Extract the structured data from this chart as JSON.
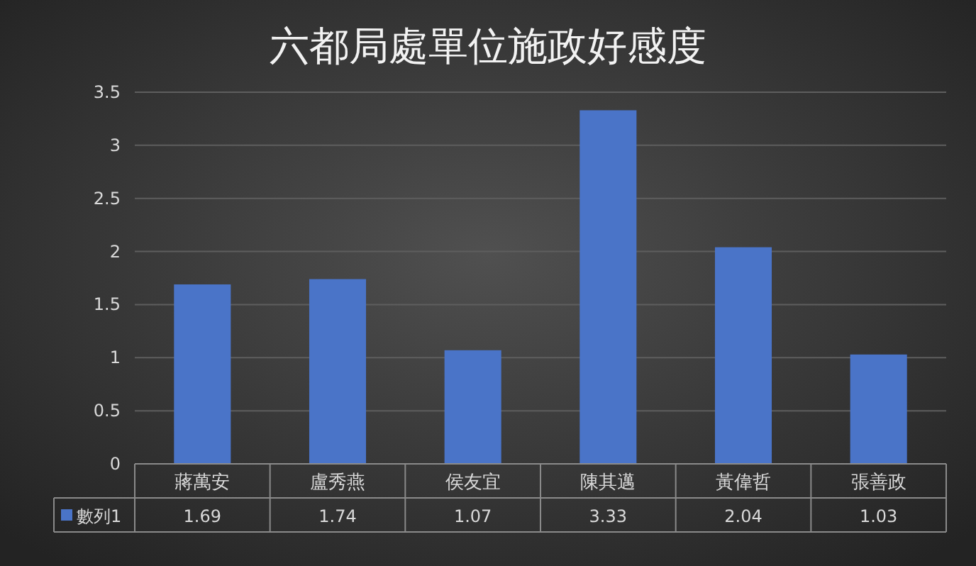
{
  "chart_data": {
    "type": "bar",
    "title": "六都局處單位施政好感度",
    "categories": [
      "蔣萬安",
      "盧秀燕",
      "侯友宜",
      "陳其邁",
      "黃偉哲",
      "張善政"
    ],
    "series": [
      {
        "name": "數列1",
        "color": "#4a74c8",
        "values": [
          1.69,
          1.74,
          1.07,
          3.33,
          2.04,
          1.03
        ]
      }
    ],
    "ylim": [
      0,
      3.5
    ],
    "yticks": [
      0,
      0.5,
      1,
      1.5,
      2,
      2.5,
      3,
      3.5
    ],
    "grid": "y",
    "data_labels": true,
    "legend": "bottom"
  }
}
